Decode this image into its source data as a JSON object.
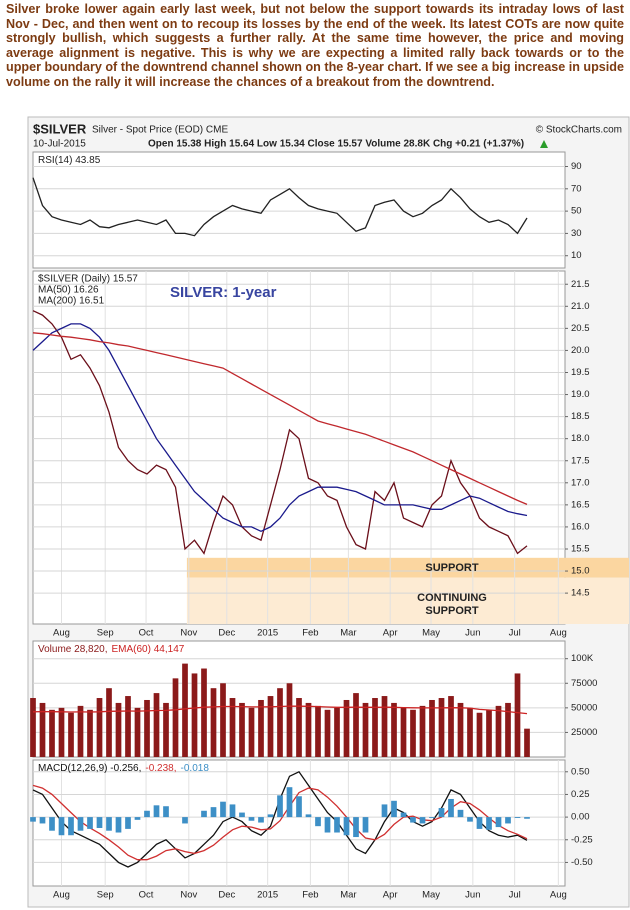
{
  "commentary": "Silver broke lower again early last week, but not below the support towards its intraday lows of last Nov - Dec, and then went on to recoup its losses by the end of the week. Its latest COTs are now quite strongly bullish, which suggests a further rally. At the same time however, the price and moving average alignment is negative. This is why we are expecting a limited rally back towards or to the upper boundary of the downtrend channel shown on the 8-year chart. If we see a big increase in upside volume on the rally it will increase the chances of a breakout from the downtrend.",
  "header": {
    "symbol": "$SILVER",
    "description": "Silver - Spot Price (EOD) CME",
    "credit": "© StockCharts.com",
    "date": "10-Jul-2015",
    "quote": "Open 15.38 High 15.64 Low 15.34 Close 15.57 Volume 28.8K Chg +0.21 (+1.37%)"
  },
  "chart_data": [
    {
      "type": "line",
      "xlim": [
        0,
        56
      ],
      "ylim": [
        -1,
        103
      ],
      "yticks": [
        10,
        30,
        50,
        70,
        90
      ],
      "grid": true,
      "legend": "inline",
      "series": [
        {
          "name": "RSI(14) 43.85",
          "color": "#222222",
          "values": [
            80,
            55,
            45,
            42,
            40,
            38,
            42,
            36,
            35,
            38,
            40,
            42,
            40,
            38,
            42,
            30,
            30,
            28,
            38,
            45,
            50,
            55,
            52,
            50,
            48,
            60,
            65,
            70,
            62,
            55,
            52,
            50,
            48,
            40,
            32,
            35,
            55,
            58,
            60,
            50,
            45,
            48,
            55,
            60,
            70,
            62,
            52,
            45,
            40,
            42,
            38,
            30,
            43.85
          ]
        }
      ]
    },
    {
      "type": "line",
      "xlim": [
        0,
        56
      ],
      "ylim": [
        13.8,
        21.8
      ],
      "grid": true,
      "legend": "stacked",
      "yticks": [
        14.5,
        {
          "value": 15,
          "label": "15.0"
        },
        15.5,
        {
          "value": 16,
          "label": "16.0"
        },
        16.5,
        {
          "value": 17,
          "label": "17.0"
        },
        17.5,
        {
          "value": 18,
          "label": "18.0"
        },
        18.5,
        {
          "value": 19,
          "label": "19.0"
        },
        19.5,
        {
          "value": 20,
          "label": "20.0"
        },
        20.5,
        {
          "value": 21,
          "label": "21.0"
        },
        21.5
      ],
      "xticks": [
        {
          "value": 3,
          "label": "Aug"
        },
        {
          "value": 7.6,
          "label": "Sep"
        },
        {
          "value": 11.9,
          "label": "Oct"
        },
        {
          "value": 16.4,
          "label": "Nov"
        },
        {
          "value": 20.4,
          "label": "Dec"
        },
        {
          "value": 24.7,
          "label": "2015"
        },
        {
          "value": 29.2,
          "label": "Feb"
        },
        {
          "value": 33.2,
          "label": "Mar"
        },
        {
          "value": 37.6,
          "label": "Apr"
        },
        {
          "value": 41.9,
          "label": "May"
        },
        {
          "value": 46.3,
          "label": "Jun"
        },
        {
          "value": 50.7,
          "label": "Jul"
        },
        {
          "value": 55.3,
          "label": "Aug"
        }
      ],
      "annotations": [
        "SILVER: 1-year",
        "SUPPORT",
        "CONTINUING",
        "SUPPORT"
      ],
      "zones": [
        {
          "y": [
            14.85,
            15.3
          ],
          "x_from": 16.2,
          "color": "#fbd6a0"
        },
        {
          "y": [
            13.8,
            14.85
          ],
          "x_from": 16.2,
          "color": "#fdebd3"
        }
      ],
      "series": [
        {
          "name": "$SILVER (Daily) 15.57",
          "color": "#6b0f1a",
          "values": [
            20.9,
            20.8,
            20.6,
            20.3,
            19.8,
            19.9,
            19.6,
            19.2,
            18.6,
            17.8,
            17.5,
            17.3,
            17.2,
            17.4,
            17.3,
            16.9,
            15.5,
            15.7,
            15.4,
            16.1,
            16.7,
            16.5,
            16.0,
            15.8,
            15.7,
            16.5,
            17.3,
            18.2,
            18.0,
            17.1,
            17.0,
            16.7,
            16.6,
            16.0,
            15.6,
            15.5,
            16.8,
            16.6,
            17.0,
            16.2,
            16.1,
            16.0,
            16.5,
            16.7,
            17.5,
            17.0,
            16.7,
            16.2,
            16.0,
            15.9,
            15.8,
            15.4,
            15.57
          ]
        },
        {
          "name": "MA(50) 16.26",
          "color": "#1a1a8c",
          "values": [
            20.0,
            20.2,
            20.4,
            20.5,
            20.6,
            20.6,
            20.5,
            20.3,
            20.0,
            19.6,
            19.2,
            18.8,
            18.4,
            18.0,
            17.7,
            17.4,
            17.1,
            16.8,
            16.6,
            16.4,
            16.2,
            16.1,
            16.0,
            16.0,
            15.9,
            16.0,
            16.2,
            16.5,
            16.7,
            16.8,
            16.9,
            16.9,
            16.9,
            16.85,
            16.8,
            16.7,
            16.6,
            16.5,
            16.5,
            16.5,
            16.5,
            16.45,
            16.4,
            16.4,
            16.5,
            16.6,
            16.7,
            16.65,
            16.55,
            16.45,
            16.35,
            16.3,
            16.26
          ]
        },
        {
          "name": "MA(200) 16.51",
          "color": "#c0282d",
          "values": [
            20.4,
            20.38,
            20.35,
            20.32,
            20.3,
            20.27,
            20.24,
            20.2,
            20.17,
            20.13,
            20.1,
            20.05,
            20.0,
            19.95,
            19.9,
            19.85,
            19.8,
            19.75,
            19.7,
            19.65,
            19.6,
            19.48,
            19.36,
            19.24,
            19.12,
            19.0,
            18.88,
            18.76,
            18.64,
            18.52,
            18.4,
            18.34,
            18.28,
            18.22,
            18.16,
            18.1,
            18.02,
            17.94,
            17.86,
            17.78,
            17.7,
            17.6,
            17.5,
            17.4,
            17.3,
            17.2,
            17.1,
            17.0,
            16.9,
            16.8,
            16.7,
            16.6,
            16.51
          ]
        }
      ]
    },
    {
      "type": "bar",
      "xlim": [
        0,
        56
      ],
      "ylim": [
        0,
        118000
      ],
      "grid": true,
      "legend": "inline",
      "yticks": [
        25000,
        50000,
        75000,
        {
          "value": 100000,
          "label": "100K"
        }
      ],
      "series": [
        {
          "name": "Volume 28,820,",
          "color": "#8b1a1a",
          "values": [
            60000,
            55000,
            48000,
            50000,
            45000,
            52000,
            48000,
            60000,
            70000,
            55000,
            62000,
            50000,
            58000,
            65000,
            55000,
            80000,
            95000,
            85000,
            90000,
            70000,
            75000,
            60000,
            55000,
            50000,
            58000,
            62000,
            70000,
            75000,
            60000,
            55000,
            52000,
            48000,
            50000,
            58000,
            65000,
            55000,
            60000,
            62000,
            55000,
            50000,
            48000,
            52000,
            58000,
            60000,
            62000,
            55000,
            50000,
            45000,
            48000,
            52000,
            55000,
            85000,
            28820
          ]
        },
        {
          "name": "EMA(60) 44,147",
          "type": "line",
          "color": "#cc2222",
          "values": [
            46000,
            46200,
            46100,
            46000,
            45800,
            45900,
            45800,
            46000,
            46500,
            46600,
            46800,
            46700,
            46900,
            47300,
            47400,
            48000,
            49000,
            49800,
            50700,
            51000,
            51400,
            51400,
            51300,
            51000,
            51000,
            51100,
            51400,
            51800,
            51700,
            51600,
            51300,
            50900,
            50600,
            50600,
            50700,
            50600,
            50600,
            50700,
            50600,
            50300,
            50000,
            49900,
            49900,
            49900,
            50100,
            50000,
            49700,
            48400,
            47800,
            47200,
            46200,
            45200,
            44147
          ]
        }
      ]
    },
    {
      "type": "line",
      "xlim": [
        0,
        56
      ],
      "ylim": [
        -0.76,
        0.63
      ],
      "grid": true,
      "legend": "inline",
      "yticks": [
        {
          "value": 0.5,
          "label": "0.50"
        },
        0.25,
        {
          "value": 0,
          "label": "0.00"
        },
        -0.25,
        {
          "value": -0.5,
          "label": "-0.50"
        }
      ],
      "xticks": [
        {
          "value": 3,
          "label": "Aug"
        },
        {
          "value": 7.6,
          "label": "Sep"
        },
        {
          "value": 11.9,
          "label": "Oct"
        },
        {
          "value": 16.4,
          "label": "Nov"
        },
        {
          "value": 20.4,
          "label": "Dec"
        },
        {
          "value": 24.7,
          "label": "2015"
        },
        {
          "value": 29.2,
          "label": "Feb"
        },
        {
          "value": 33.2,
          "label": "Mar"
        },
        {
          "value": 37.6,
          "label": "Apr"
        },
        {
          "value": 41.9,
          "label": "May"
        },
        {
          "value": 46.3,
          "label": "Jun"
        },
        {
          "value": 50.7,
          "label": "Jul"
        },
        {
          "value": 55.3,
          "label": "Aug"
        }
      ],
      "series": [
        {
          "name": "MACD(12,26,9) -0.256,",
          "color": "#111111",
          "values": [
            0.3,
            0.25,
            0.1,
            -0.05,
            -0.15,
            -0.2,
            -0.25,
            -0.3,
            -0.4,
            -0.5,
            -0.55,
            -0.5,
            -0.4,
            -0.3,
            -0.25,
            -0.35,
            -0.45,
            -0.4,
            -0.3,
            -0.2,
            -0.05,
            0,
            -0.05,
            -0.15,
            -0.2,
            -0.1,
            0.2,
            0.45,
            0.5,
            0.35,
            0.2,
            0.05,
            -0.05,
            -0.2,
            -0.35,
            -0.4,
            -0.25,
            -0.05,
            0.1,
            0.05,
            -0.05,
            -0.1,
            -0.05,
            0.1,
            0.3,
            0.25,
            0.1,
            -0.05,
            -0.15,
            -0.2,
            -0.22,
            -0.2,
            -0.256
          ]
        },
        {
          "name": "-0.238,",
          "color": "#d03030",
          "values": [
            0.35,
            0.32,
            0.25,
            0.15,
            0.05,
            -0.05,
            -0.12,
            -0.18,
            -0.25,
            -0.33,
            -0.42,
            -0.47,
            -0.47,
            -0.43,
            -0.37,
            -0.35,
            -0.38,
            -0.4,
            -0.37,
            -0.31,
            -0.22,
            -0.14,
            -0.1,
            -0.11,
            -0.14,
            -0.13,
            -0.04,
            0.12,
            0.27,
            0.32,
            0.3,
            0.22,
            0.12,
            0,
            -0.13,
            -0.23,
            -0.25,
            -0.19,
            -0.08,
            0,
            0.01,
            -0.03,
            -0.04,
            0,
            0.1,
            0.17,
            0.15,
            0.08,
            -0.01,
            -0.09,
            -0.15,
            -0.19,
            -0.238
          ]
        },
        {
          "name": "-0.018",
          "type": "bar",
          "color": "#3d8fc6",
          "values": [
            -0.05,
            -0.07,
            -0.15,
            -0.2,
            -0.2,
            -0.15,
            -0.13,
            -0.12,
            -0.15,
            -0.17,
            -0.13,
            -0.03,
            0.07,
            0.13,
            0.12,
            0,
            -0.07,
            0,
            0.07,
            0.11,
            0.17,
            0.14,
            0.05,
            -0.04,
            -0.06,
            0.03,
            0.24,
            0.33,
            0.23,
            0.03,
            -0.1,
            -0.17,
            -0.17,
            -0.2,
            -0.22,
            -0.17,
            0,
            0.14,
            0.18,
            0.05,
            -0.06,
            -0.07,
            -0.01,
            0.1,
            0.2,
            0.08,
            -0.05,
            -0.13,
            -0.14,
            -0.11,
            -0.07,
            -0.01,
            -0.018
          ]
        }
      ]
    }
  ]
}
